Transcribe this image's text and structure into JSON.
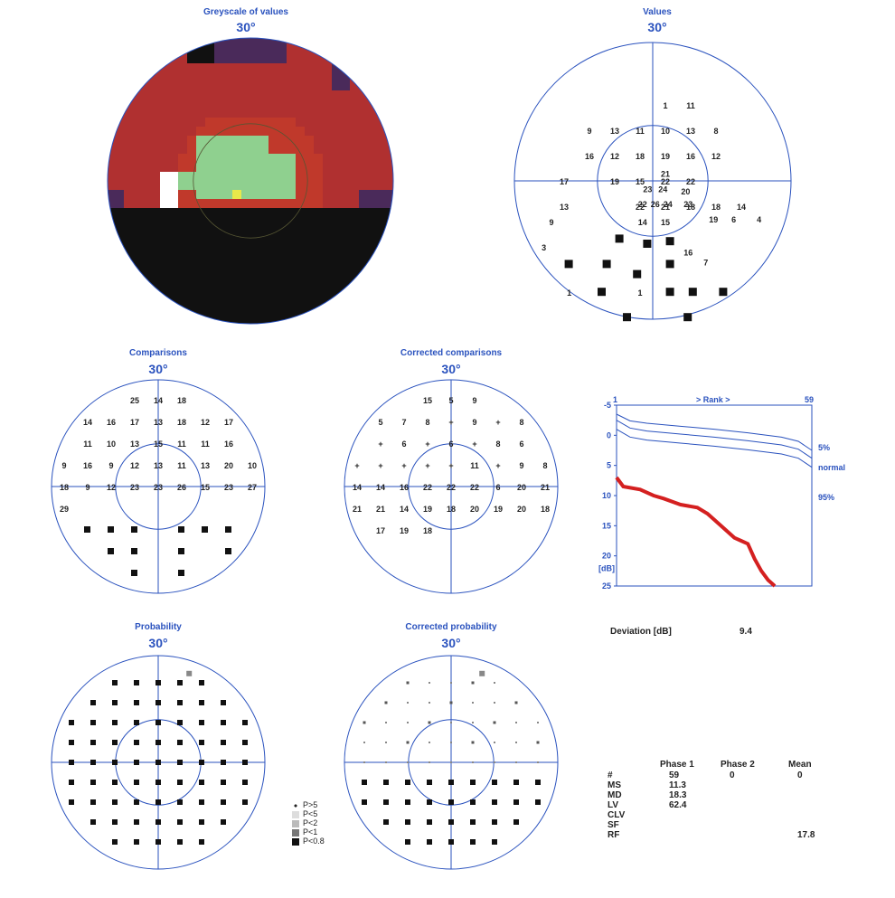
{
  "panels": {
    "greyscale": {
      "title": "Greyscale of values",
      "deg": "30°"
    },
    "values": {
      "title": "Values",
      "deg": "30°"
    },
    "comparisons": {
      "title": "Comparisons",
      "deg": "30°"
    },
    "corrected_comparisons": {
      "title": "Corrected comparisons",
      "deg": "30°"
    },
    "probability": {
      "title": "Probability",
      "deg": "30°"
    },
    "corrected_probability": {
      "title": "Corrected probability",
      "deg": "30°"
    }
  },
  "values_grid": [
    {
      "r": -3,
      "c": 0,
      "v": "1"
    },
    {
      "r": -3,
      "c": 1,
      "v": "11"
    },
    {
      "r": -2,
      "c": -3,
      "v": "9"
    },
    {
      "r": -2,
      "c": -2,
      "v": "13"
    },
    {
      "r": -2,
      "c": -1,
      "v": "11"
    },
    {
      "r": -2,
      "c": 0,
      "v": "10"
    },
    {
      "r": -2,
      "c": 1,
      "v": "13"
    },
    {
      "r": -2,
      "c": 2,
      "v": "8"
    },
    {
      "r": -1,
      "c": -3,
      "v": "16"
    },
    {
      "r": -1,
      "c": -2,
      "v": "12"
    },
    {
      "r": -1,
      "c": -1,
      "v": "18"
    },
    {
      "r": -1,
      "c": 0,
      "v": "19"
    },
    {
      "r": -1,
      "c": 1,
      "v": "16"
    },
    {
      "r": -1,
      "c": 2,
      "v": "12"
    },
    {
      "r": 0,
      "c": -4,
      "v": "17"
    },
    {
      "r": 0,
      "c": -2,
      "v": "19"
    },
    {
      "r": 0,
      "c": -1,
      "v": "15"
    },
    {
      "r": 0,
      "c": 0,
      "v": "22"
    },
    {
      "r": 0,
      "c": 1,
      "v": "22"
    },
    {
      "r": 1,
      "c": -4,
      "v": "13"
    },
    {
      "r": 1,
      "c": -1,
      "v": "22"
    },
    {
      "r": 1,
      "c": 0,
      "v": "21"
    },
    {
      "r": 1,
      "c": 1,
      "v": "18"
    },
    {
      "r": 1,
      "c": 2,
      "v": "18"
    },
    {
      "r": 1,
      "c": 3,
      "v": "14"
    }
  ],
  "values_inner": [
    "23",
    "24",
    "20",
    "21",
    "22",
    "26",
    "24",
    "23",
    "14",
    "15",
    "19",
    "6",
    "4",
    "9",
    "3",
    "16",
    "7",
    "1",
    "1"
  ],
  "comparisons_grid": [
    "25",
    "14",
    "18",
    "14",
    "16",
    "17",
    "13",
    "18",
    "12",
    "17",
    "11",
    "10",
    "13",
    "15",
    "11",
    "11",
    "16",
    "9",
    "16",
    "9",
    "12",
    "13",
    "11",
    "13",
    "20",
    "10",
    "18",
    "9",
    "12",
    "23",
    "23",
    "26",
    "15",
    "23",
    "27",
    "29"
  ],
  "corrected_grid": [
    "15",
    "5",
    "9",
    "5",
    "7",
    "8",
    "+",
    "9",
    "+",
    "8",
    "+",
    "6",
    "+",
    "6",
    "+",
    "8",
    "6",
    "+",
    "+",
    "+",
    "+",
    "+",
    "11",
    "+",
    "9",
    "8",
    "14",
    "14",
    "16",
    "22",
    "22",
    "22",
    "6",
    "20",
    "21",
    "21",
    "21",
    "14",
    "19",
    "18",
    "20",
    "19",
    "20",
    "18",
    "17",
    "19",
    "18"
  ],
  "rank_chart": {
    "top_left": "1",
    "rank_label": "> Rank >",
    "top_right": "59",
    "y_ticks": [
      "-5",
      "0",
      "5",
      "10",
      "15",
      "20",
      "25"
    ],
    "y_unit": "[dB]",
    "labels": {
      "p5": "5%",
      "normal": "normal",
      "p95": "95%"
    }
  },
  "chart_data": {
    "type": "line",
    "title": "",
    "xlabel": "> Rank >",
    "ylabel": "[dB]",
    "xlim": [
      1,
      59
    ],
    "ylim": [
      -5,
      25
    ],
    "series": [
      {
        "name": "5%",
        "x": [
          1,
          5,
          10,
          20,
          30,
          40,
          50,
          55,
          59
        ],
        "y": [
          -3.5,
          -2.4,
          -2.0,
          -1.5,
          -1.0,
          -0.4,
          0.3,
          1.0,
          2.5
        ]
      },
      {
        "name": "normal",
        "x": [
          1,
          5,
          10,
          20,
          30,
          40,
          50,
          55,
          59
        ],
        "y": [
          -2.5,
          -1.2,
          -0.7,
          -0.2,
          0.3,
          0.9,
          1.6,
          2.3,
          3.8
        ]
      },
      {
        "name": "95%",
        "x": [
          1,
          5,
          10,
          20,
          30,
          40,
          50,
          55,
          59
        ],
        "y": [
          -1.0,
          0.3,
          0.8,
          1.3,
          1.8,
          2.4,
          3.1,
          3.8,
          5.3
        ]
      },
      {
        "name": "patient",
        "x": [
          1,
          3,
          8,
          12,
          15,
          20,
          25,
          28,
          30,
          33,
          36,
          38,
          40,
          42,
          44,
          46,
          48
        ],
        "y": [
          7.0,
          8.5,
          9.0,
          10.0,
          10.5,
          11.5,
          12.0,
          13.0,
          14.0,
          15.5,
          17.0,
          17.5,
          18.0,
          20.5,
          22.5,
          24.0,
          25.0
        ]
      }
    ]
  },
  "deviation": {
    "label": "Deviation [dB]",
    "value": "9.4"
  },
  "legend": [
    {
      "label": "P>5",
      "sym": "dot"
    },
    {
      "label": "P<5",
      "sym": "dots"
    },
    {
      "label": "P<2",
      "sym": "light"
    },
    {
      "label": "P<1",
      "sym": "mid"
    },
    {
      "label": "P<0.8",
      "sym": "dark"
    }
  ],
  "stats": {
    "headers": [
      "Phase 1",
      "Phase 2",
      "Mean"
    ],
    "rows": [
      {
        "k": "#",
        "p1": "59",
        "p2": "0",
        "m": "0"
      },
      {
        "k": "MS",
        "p1": "11.3",
        "p2": "",
        "m": ""
      },
      {
        "k": "MD",
        "p1": "18.3",
        "p2": "",
        "m": ""
      },
      {
        "k": "LV",
        "p1": "62.4",
        "p2": "",
        "m": ""
      },
      {
        "k": "CLV",
        "p1": "",
        "p2": "",
        "m": ""
      },
      {
        "k": "SF",
        "p1": "",
        "p2": "",
        "m": ""
      },
      {
        "k": "RF",
        "p1": "",
        "p2": "",
        "m": "17.8"
      }
    ]
  },
  "colors": {
    "axis": "#2a52be",
    "dark": "#111111",
    "red": "#b03030",
    "brick": "#c0392b",
    "green": "#8fd08f",
    "purple": "#4a2a5a",
    "curve": "#d42020"
  }
}
